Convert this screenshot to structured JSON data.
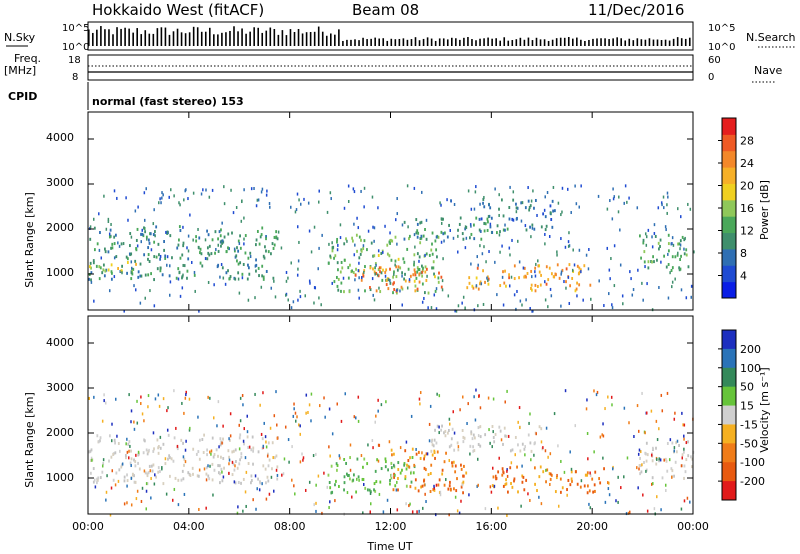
{
  "header": {
    "title": "Hokkaido West (fitACF)",
    "beam": "Beam 08",
    "date": "11/Dec/2016"
  },
  "top_panels": {
    "nsky_label": "N.Sky",
    "nsky_ticks": [
      "10^5",
      "10^0"
    ],
    "nsearch_label": "N.Search",
    "nsearch_ticks": [
      "10^5",
      "10^0"
    ],
    "freq_label": "Freq.",
    "freq_unit": "[MHz]",
    "freq_ticks": [
      "18",
      "8"
    ],
    "nave_label": "Nave",
    "nave_ticks": [
      "60",
      "0"
    ],
    "cpid_label": "CPID",
    "cpid_text": "normal (fast stereo) 153"
  },
  "chart_data": [
    {
      "type": "heatmap",
      "name": "power",
      "xlabel": "",
      "ylabel": "Slant Range [km]",
      "x_ticks": [
        "00:00",
        "04:00",
        "08:00",
        "12:00",
        "16:00",
        "20:00",
        "00:00"
      ],
      "x_range_hours": [
        0,
        24
      ],
      "y_ticks": [
        1000,
        2000,
        3000,
        4000
      ],
      "ylim": [
        200,
        4600
      ],
      "colorbar": {
        "label": "Power [dB]",
        "ticks": [
          "4",
          "8",
          "12",
          "16",
          "20",
          "24",
          "28"
        ],
        "range": [
          0,
          32
        ],
        "colors": [
          "#0a1ee6",
          "#1f4bd2",
          "#2f6fb3",
          "#3f8f6c",
          "#4aa85a",
          "#8fc85a",
          "#f0d020",
          "#f6b028",
          "#f3882a",
          "#ef5a24",
          "#e51e1e"
        ]
      },
      "regions": [
        {
          "t": [
            0,
            7.5
          ],
          "r": [
            900,
            2100
          ],
          "level": 10
        },
        {
          "t": [
            0,
            2
          ],
          "r": [
            1050,
            1300
          ],
          "level": 18
        },
        {
          "t": [
            9.5,
            14
          ],
          "r": [
            600,
            1900
          ],
          "level": 14
        },
        {
          "t": [
            10.5,
            14
          ],
          "r": [
            650,
            1200
          ],
          "level": 26
        },
        {
          "t": [
            12.5,
            16.5
          ],
          "r": [
            1800,
            2300
          ],
          "level": 10
        },
        {
          "t": [
            15.5,
            18.5
          ],
          "r": [
            2000,
            2700
          ],
          "level": 8
        },
        {
          "t": [
            15,
            20
          ],
          "r": [
            650,
            1250
          ],
          "level": 24
        },
        {
          "t": [
            21.8,
            24
          ],
          "r": [
            1100,
            1900
          ],
          "level": 12
        }
      ]
    },
    {
      "type": "heatmap",
      "name": "velocity",
      "xlabel": "Time UT",
      "ylabel": "Slant Range [km]",
      "x_ticks": [
        "00:00",
        "04:00",
        "08:00",
        "12:00",
        "16:00",
        "20:00",
        "00:00"
      ],
      "x_range_hours": [
        0,
        24
      ],
      "y_ticks": [
        1000,
        2000,
        3000,
        4000
      ],
      "ylim": [
        200,
        4600
      ],
      "colorbar": {
        "label": "Velocity [m s⁻¹]",
        "ticks": [
          "200",
          "100",
          "50",
          "15",
          "-15",
          "-50",
          "-100",
          "-200"
        ],
        "colors": [
          "#1d2fbf",
          "#2a73b8",
          "#34895a",
          "#66c43a",
          "#cfcfcf",
          "#f5b021",
          "#f07c18",
          "#e85a10",
          "#e11a1a"
        ]
      },
      "regions": [
        {
          "t": [
            0,
            7.5
          ],
          "r": [
            900,
            2000
          ],
          "class": "grey"
        },
        {
          "t": [
            9.5,
            13
          ],
          "r": [
            700,
            1500
          ],
          "class": "green"
        },
        {
          "t": [
            12,
            15
          ],
          "r": [
            700,
            1700
          ],
          "class": "orange"
        },
        {
          "t": [
            13.5,
            18
          ],
          "r": [
            1600,
            2200
          ],
          "class": "grey"
        },
        {
          "t": [
            16,
            20.5
          ],
          "r": [
            700,
            1300
          ],
          "class": "orange"
        },
        {
          "t": [
            21.8,
            24
          ],
          "r": [
            1000,
            1900
          ],
          "class": "grey"
        }
      ]
    }
  ]
}
